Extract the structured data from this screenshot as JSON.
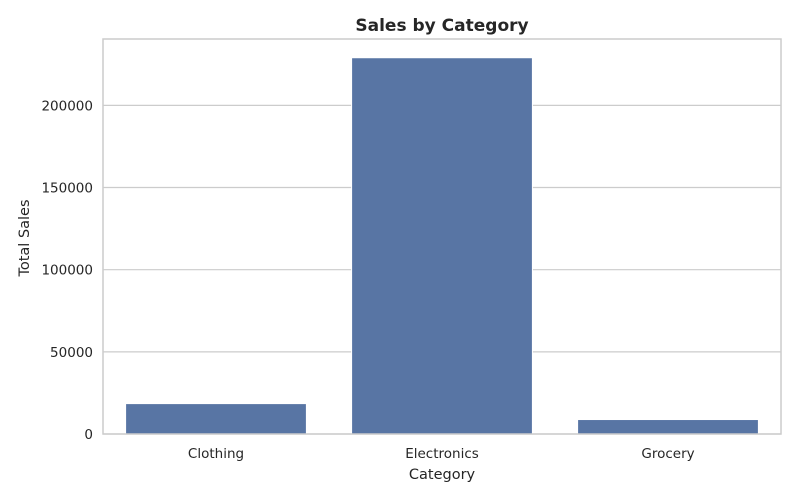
{
  "chart_data": {
    "type": "bar",
    "title": "Sales by Category",
    "xlabel": "Category",
    "ylabel": "Total Sales",
    "categories": [
      "Clothing",
      "Electronics",
      "Grocery"
    ],
    "values": [
      18500,
      229000,
      8800
    ],
    "ylim": [
      0,
      240400
    ],
    "yticks": [
      0,
      50000,
      100000,
      150000,
      200000
    ],
    "ytick_labels": [
      "0",
      "50000",
      "100000",
      "150000",
      "200000"
    ],
    "grid": true,
    "bar_color": "#5875a4",
    "grid_color": "#cccccc",
    "text_color": "#262626"
  }
}
